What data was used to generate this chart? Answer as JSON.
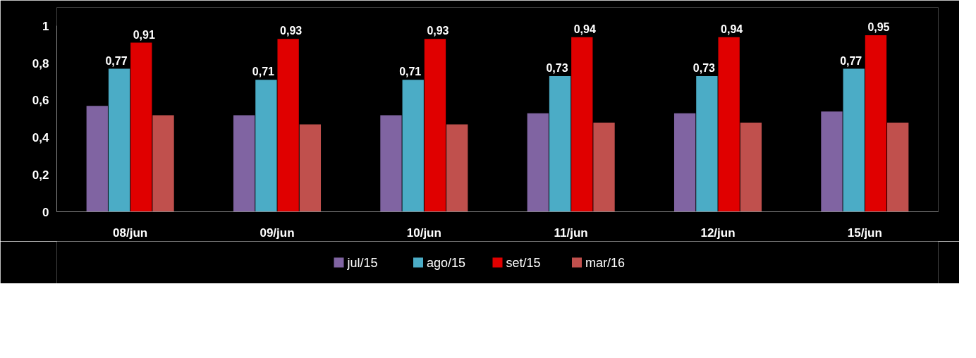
{
  "chart_data": {
    "type": "bar",
    "categories": [
      "08/jun",
      "09/jun",
      "10/jun",
      "11/jun",
      "12/jun",
      "15/jun"
    ],
    "series": [
      {
        "name": "jul/15",
        "color": "#8064a2",
        "values": [
          0.57,
          0.52,
          0.52,
          0.53,
          0.53,
          0.54
        ]
      },
      {
        "name": "ago/15",
        "color": "#4bacc6",
        "values": [
          0.77,
          0.71,
          0.71,
          0.73,
          0.73,
          0.77
        ],
        "value_labels": [
          "0,77",
          "0,71",
          "0,71",
          "0,73",
          "0,73",
          "0,77"
        ]
      },
      {
        "name": "set/15",
        "color": "#e00000",
        "values": [
          0.91,
          0.93,
          0.93,
          0.94,
          0.94,
          0.95
        ],
        "value_labels": [
          "0,91",
          "0,93",
          "0,93",
          "0,94",
          "0,94",
          "0,95"
        ]
      },
      {
        "name": "mar/16",
        "color": "#c0504d",
        "values": [
          0.52,
          0.47,
          0.47,
          0.48,
          0.48,
          0.48
        ]
      }
    ],
    "ylim": [
      0,
      1
    ],
    "yticks": [
      0,
      {
        "value": 0.2,
        "label": "0,2"
      },
      {
        "value": 0.4,
        "label": "0,4"
      },
      {
        "value": 0.6,
        "label": "0,6"
      },
      {
        "value": 0.8,
        "label": "0,8"
      },
      1
    ],
    "grid": false,
    "legend": "bottom"
  }
}
